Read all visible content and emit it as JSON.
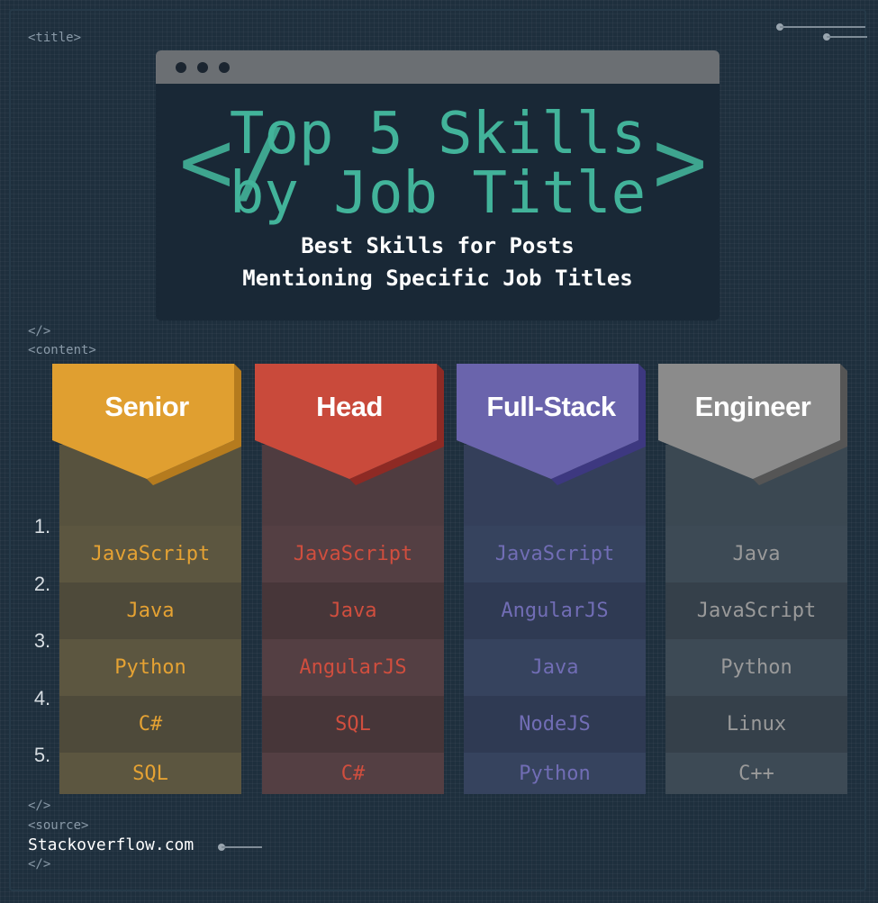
{
  "tags": {
    "title_open": "<title>",
    "title_close": "</>",
    "content_open": "<content>",
    "content_close": "</>",
    "source_open": "<source>",
    "source_close": "</>"
  },
  "header": {
    "title_line1": "Top 5 Skills",
    "title_line2": "by Job Title",
    "bracket_left": "</",
    "bracket_right": ">",
    "subtitle_line1": "Best Skills for Posts",
    "subtitle_line2": "Mentioning Specific Job Titles"
  },
  "ranks": [
    "1.",
    "2.",
    "3.",
    "4.",
    "5."
  ],
  "columns": [
    {
      "title": "Senior",
      "skills": [
        "JavaScript",
        "Java",
        "Python",
        "C#",
        "SQL"
      ]
    },
    {
      "title": "Head",
      "skills": [
        "JavaScript",
        "Java",
        "AngularJS",
        "SQL",
        "C#"
      ]
    },
    {
      "title": "Full-Stack",
      "skills": [
        "JavaScript",
        "AngularJS",
        "Java",
        "NodeJS",
        "Python"
      ]
    },
    {
      "title": "Engineer",
      "skills": [
        "Java",
        "JavaScript",
        "Python",
        "Linux",
        "C++"
      ]
    }
  ],
  "colors": {
    "senior": "#e09f30",
    "head": "#c94a3b",
    "fullstack": "#6a64ac",
    "engineer": "#8b8b8b",
    "title_green": "#42b39a"
  },
  "source": {
    "text": "Stackoverflow.com"
  }
}
